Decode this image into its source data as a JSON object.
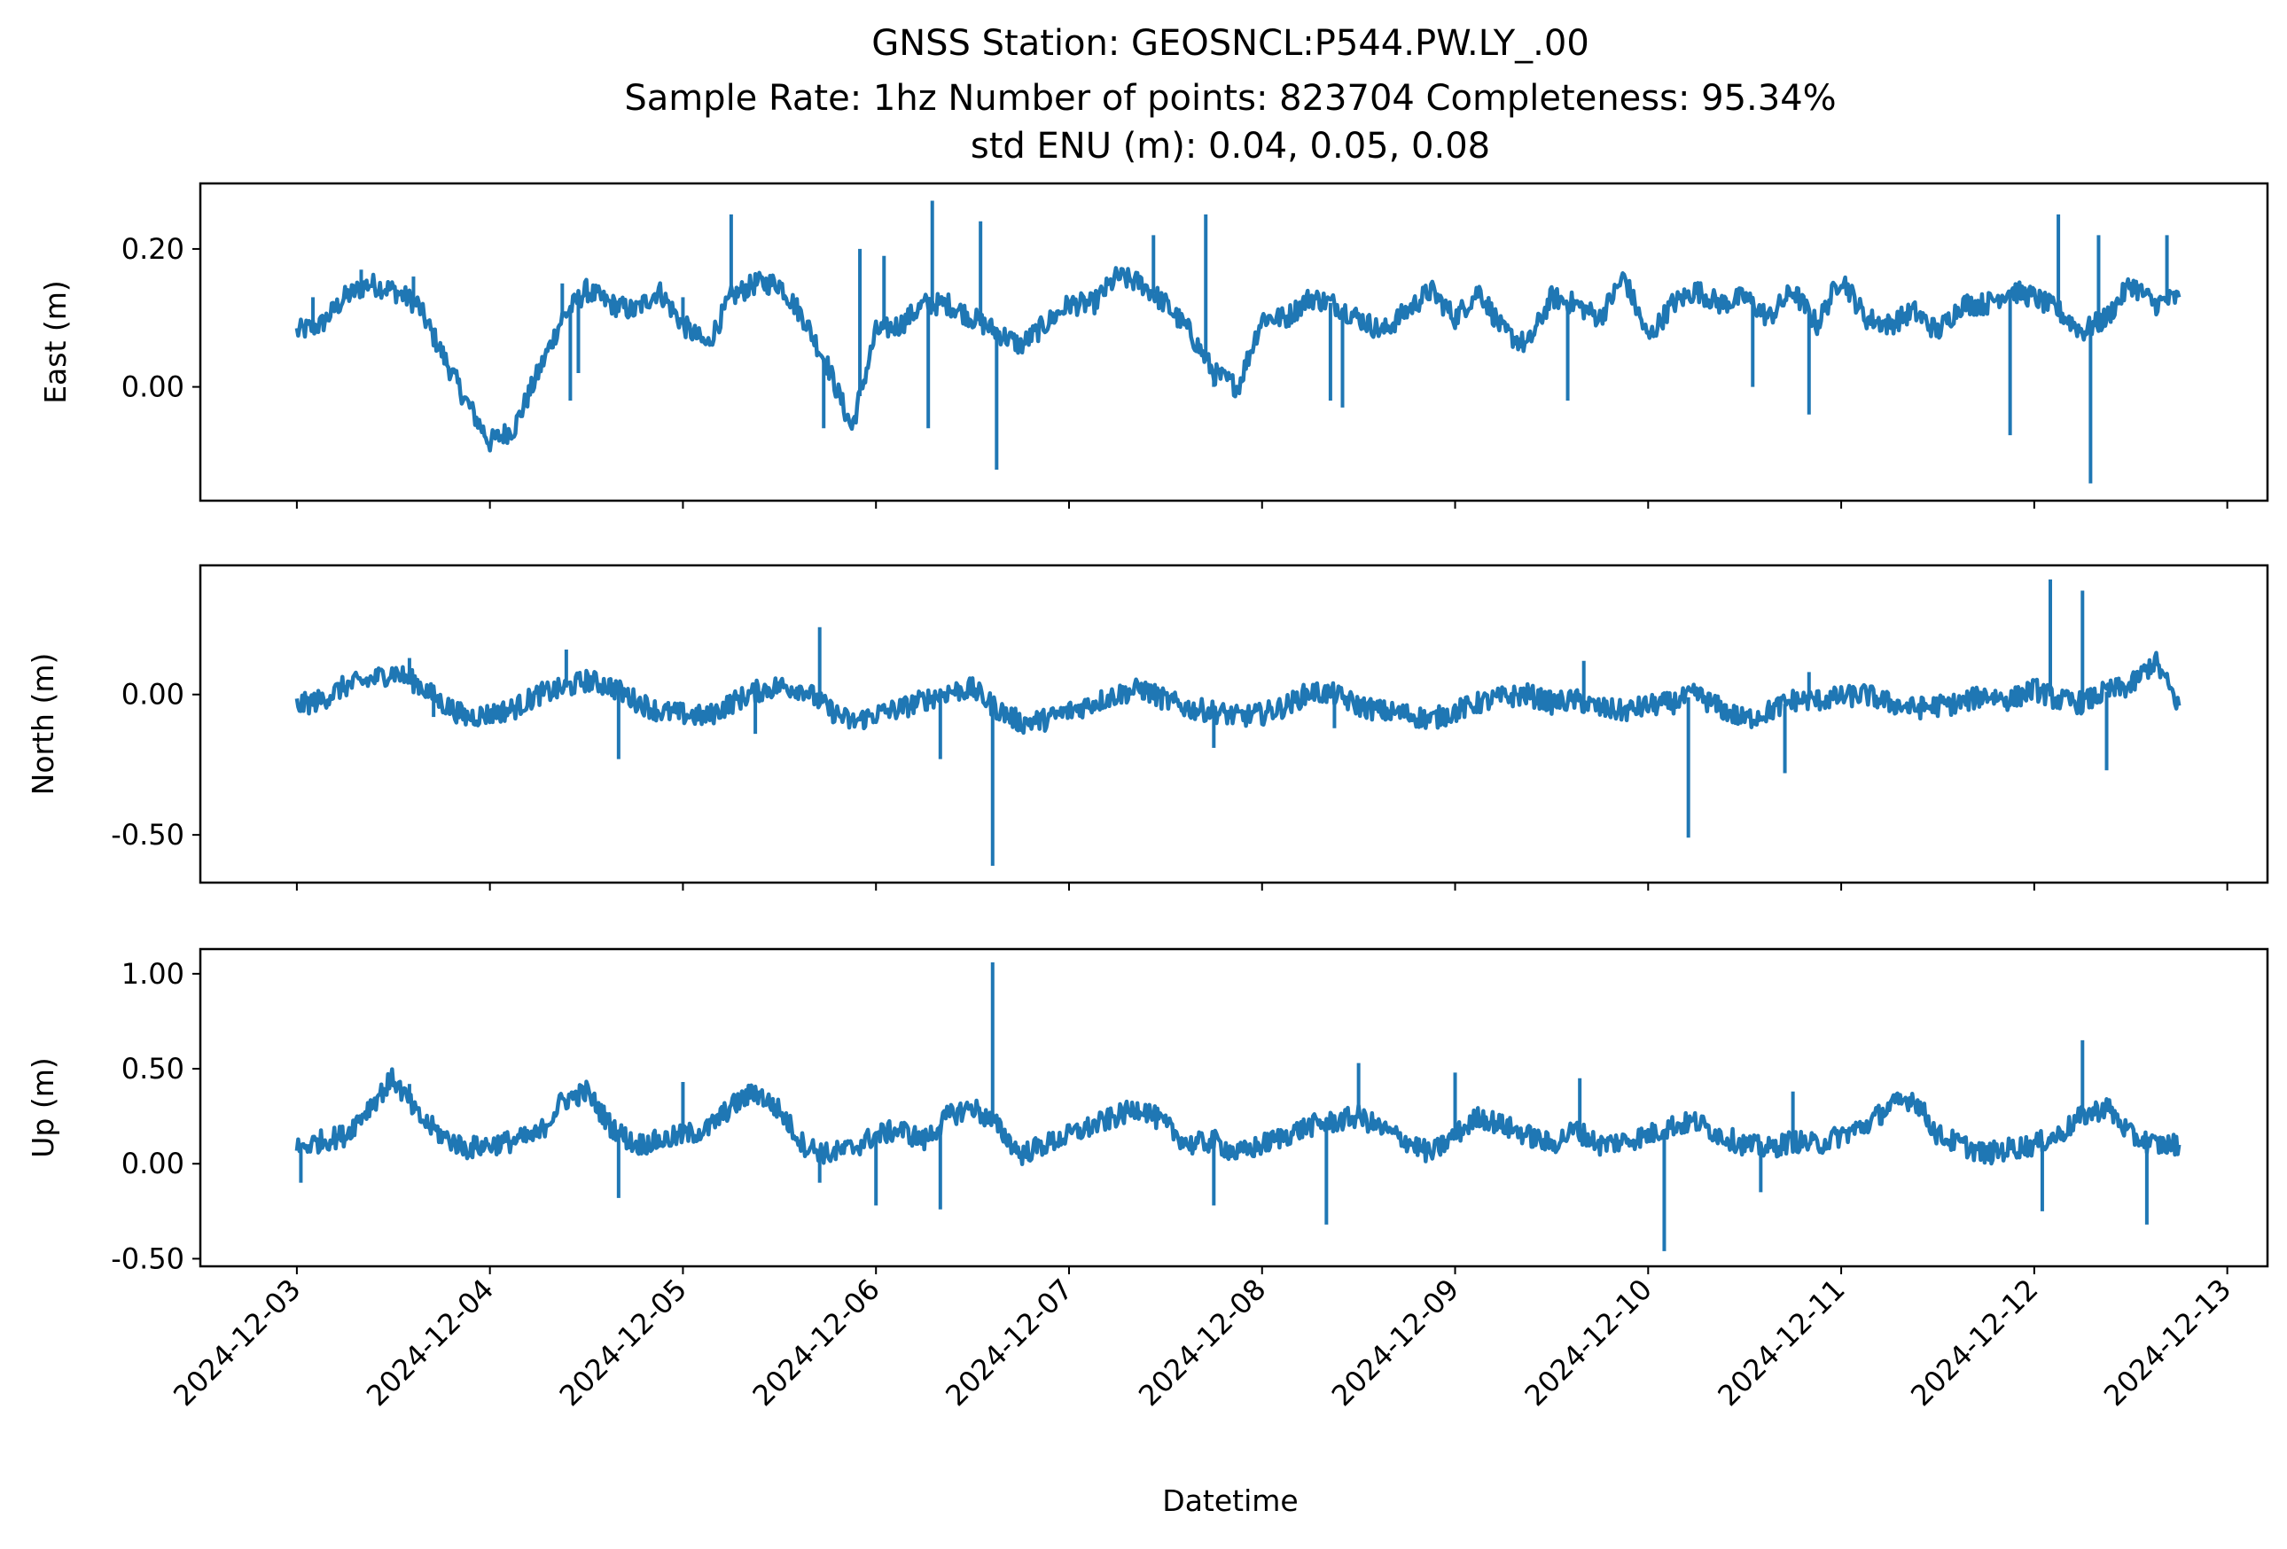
{
  "title_lines": [
    "GNSS Station: GEOSNCL:P544.PW.LY_.00",
    "Sample Rate: 1hz   Number of points: 823704    Completeness:  95.34%",
    "std ENU (m):  0.04, 0.05, 0.08"
  ],
  "xlabel": "Datetime",
  "x_tick_labels": [
    "2024-12-03",
    "2024-12-04",
    "2024-12-05",
    "2024-12-06",
    "2024-12-07",
    "2024-12-08",
    "2024-12-09",
    "2024-12-10",
    "2024-12-11",
    "2024-12-12",
    "2024-12-13"
  ],
  "line_color": "#1f77b4",
  "chart_data": [
    {
      "type": "line",
      "ylabel": "East (m)",
      "xlim": [
        "2024-12-02T12:00",
        "2024-12-13T05:00"
      ],
      "ylim": [
        -0.165,
        0.295
      ],
      "yticks": [
        0.0,
        0.2
      ],
      "ytick_labels": [
        "0.00",
        "0.20"
      ],
      "x": [
        "2024-12-03T00:00",
        "2024-12-03T03:00",
        "2024-12-03T06:00",
        "2024-12-03T09:00",
        "2024-12-03T12:00",
        "2024-12-03T15:00",
        "2024-12-03T18:00",
        "2024-12-03T21:00",
        "2024-12-04T00:00",
        "2024-12-04T03:00",
        "2024-12-04T06:00",
        "2024-12-04T09:00",
        "2024-12-04T12:00",
        "2024-12-04T15:00",
        "2024-12-04T18:00",
        "2024-12-04T21:00",
        "2024-12-05T00:00",
        "2024-12-05T03:00",
        "2024-12-05T06:00",
        "2024-12-05T09:00",
        "2024-12-05T12:00",
        "2024-12-05T15:00",
        "2024-12-05T18:00",
        "2024-12-05T21:00",
        "2024-12-06T00:00",
        "2024-12-06T03:00",
        "2024-12-06T06:00",
        "2024-12-06T09:00",
        "2024-12-06T12:00",
        "2024-12-06T15:00",
        "2024-12-06T18:00",
        "2024-12-06T21:00",
        "2024-12-07T00:00",
        "2024-12-07T03:00",
        "2024-12-07T06:00",
        "2024-12-07T09:00",
        "2024-12-07T12:00",
        "2024-12-07T15:00",
        "2024-12-07T18:00",
        "2024-12-07T21:00",
        "2024-12-08T00:00",
        "2024-12-08T03:00",
        "2024-12-08T06:00",
        "2024-12-08T09:00",
        "2024-12-08T12:00",
        "2024-12-08T15:00",
        "2024-12-08T18:00",
        "2024-12-08T21:00",
        "2024-12-09T00:00",
        "2024-12-09T03:00",
        "2024-12-09T06:00",
        "2024-12-09T09:00",
        "2024-12-09T12:00",
        "2024-12-09T15:00",
        "2024-12-09T18:00",
        "2024-12-09T21:00",
        "2024-12-10T00:00",
        "2024-12-10T03:00",
        "2024-12-10T06:00",
        "2024-12-10T09:00",
        "2024-12-10T12:00",
        "2024-12-10T15:00",
        "2024-12-10T18:00",
        "2024-12-10T21:00",
        "2024-12-11T00:00",
        "2024-12-11T03:00",
        "2024-12-11T06:00",
        "2024-12-11T09:00",
        "2024-12-11T12:00",
        "2024-12-11T15:00",
        "2024-12-11T18:00",
        "2024-12-11T21:00",
        "2024-12-12T00:00",
        "2024-12-12T03:00",
        "2024-12-12T06:00",
        "2024-12-12T09:00",
        "2024-12-12T12:00",
        "2024-12-12T15:00",
        "2024-12-12T18:00"
      ],
      "values": [
        0.08,
        0.09,
        0.13,
        0.15,
        0.14,
        0.12,
        0.05,
        -0.02,
        -0.08,
        -0.06,
        0.02,
        0.1,
        0.14,
        0.12,
        0.11,
        0.14,
        0.09,
        0.06,
        0.13,
        0.15,
        0.15,
        0.1,
        0.03,
        -0.06,
        0.08,
        0.09,
        0.12,
        0.12,
        0.1,
        0.08,
        0.06,
        0.09,
        0.12,
        0.12,
        0.16,
        0.15,
        0.12,
        0.08,
        0.02,
        0.0,
        0.1,
        0.1,
        0.13,
        0.12,
        0.1,
        0.08,
        0.11,
        0.14,
        0.1,
        0.14,
        0.08,
        0.06,
        0.13,
        0.12,
        0.1,
        0.16,
        0.07,
        0.12,
        0.14,
        0.12,
        0.13,
        0.1,
        0.14,
        0.09,
        0.16,
        0.1,
        0.09,
        0.11,
        0.08,
        0.12,
        0.12,
        0.14,
        0.13,
        0.11,
        0.08,
        0.1,
        0.15,
        0.12,
        0.13
      ],
      "spikes": [
        {
          "x": "2024-12-03T02:00",
          "y": 0.13
        },
        {
          "x": "2024-12-03T08:00",
          "y": 0.17
        },
        {
          "x": "2024-12-03T14:30",
          "y": 0.16
        },
        {
          "x": "2024-12-04T11:00",
          "y": 0.02
        },
        {
          "x": "2024-12-04T09:00",
          "y": 0.15
        },
        {
          "x": "2024-12-04T10:00",
          "y": -0.02
        },
        {
          "x": "2024-12-05T00:00",
          "y": 0.13
        },
        {
          "x": "2024-12-05T06:00",
          "y": 0.25
        },
        {
          "x": "2024-12-05T17:30",
          "y": -0.06
        },
        {
          "x": "2024-12-05T22:00",
          "y": 0.2
        },
        {
          "x": "2024-12-06T01:00",
          "y": 0.19
        },
        {
          "x": "2024-12-06T07:00",
          "y": 0.27
        },
        {
          "x": "2024-12-06T06:30",
          "y": -0.06
        },
        {
          "x": "2024-12-06T13:00",
          "y": 0.24
        },
        {
          "x": "2024-12-06T15:00",
          "y": -0.12
        },
        {
          "x": "2024-12-07T10:30",
          "y": 0.22
        },
        {
          "x": "2024-12-07T17:00",
          "y": 0.25
        },
        {
          "x": "2024-12-07T18:00",
          "y": 0.0
        },
        {
          "x": "2024-12-08T08:30",
          "y": -0.02
        },
        {
          "x": "2024-12-08T10:00",
          "y": -0.03
        },
        {
          "x": "2024-12-09T14:00",
          "y": -0.02
        },
        {
          "x": "2024-12-10T13:00",
          "y": 0.0
        },
        {
          "x": "2024-12-10T20:00",
          "y": -0.04
        },
        {
          "x": "2024-12-12T03:00",
          "y": 0.25
        },
        {
          "x": "2024-12-11T21:00",
          "y": -0.07
        },
        {
          "x": "2024-12-12T07:00",
          "y": -0.14
        },
        {
          "x": "2024-12-12T08:00",
          "y": 0.22
        },
        {
          "x": "2024-12-12T16:30",
          "y": 0.22
        }
      ]
    },
    {
      "type": "line",
      "ylabel": "North (m)",
      "xlim": [
        "2024-12-02T12:00",
        "2024-12-13T05:00"
      ],
      "ylim": [
        -0.67,
        0.46
      ],
      "yticks": [
        -0.5,
        0.0
      ],
      "ytick_labels": [
        "-0.50",
        "0.00"
      ],
      "x": [
        "2024-12-03T00:00",
        "2024-12-03T03:00",
        "2024-12-03T06:00",
        "2024-12-03T09:00",
        "2024-12-03T12:00",
        "2024-12-03T15:00",
        "2024-12-03T18:00",
        "2024-12-03T21:00",
        "2024-12-04T00:00",
        "2024-12-04T03:00",
        "2024-12-04T06:00",
        "2024-12-04T09:00",
        "2024-12-04T12:00",
        "2024-12-04T15:00",
        "2024-12-04T18:00",
        "2024-12-04T21:00",
        "2024-12-05T00:00",
        "2024-12-05T03:00",
        "2024-12-05T06:00",
        "2024-12-05T09:00",
        "2024-12-05T12:00",
        "2024-12-05T15:00",
        "2024-12-05T18:00",
        "2024-12-05T21:00",
        "2024-12-06T00:00",
        "2024-12-06T03:00",
        "2024-12-06T06:00",
        "2024-12-06T09:00",
        "2024-12-06T12:00",
        "2024-12-06T15:00",
        "2024-12-06T18:00",
        "2024-12-06T21:00",
        "2024-12-07T00:00",
        "2024-12-07T03:00",
        "2024-12-07T06:00",
        "2024-12-07T09:00",
        "2024-12-07T12:00",
        "2024-12-07T15:00",
        "2024-12-07T18:00",
        "2024-12-07T21:00",
        "2024-12-08T00:00",
        "2024-12-08T03:00",
        "2024-12-08T06:00",
        "2024-12-08T09:00",
        "2024-12-08T12:00",
        "2024-12-08T15:00",
        "2024-12-08T18:00",
        "2024-12-08T21:00",
        "2024-12-09T00:00",
        "2024-12-09T03:00",
        "2024-12-09T06:00",
        "2024-12-09T09:00",
        "2024-12-09T12:00",
        "2024-12-09T15:00",
        "2024-12-09T18:00",
        "2024-12-09T21:00",
        "2024-12-10T00:00",
        "2024-12-10T03:00",
        "2024-12-10T06:00",
        "2024-12-10T09:00",
        "2024-12-10T12:00",
        "2024-12-10T15:00",
        "2024-12-10T18:00",
        "2024-12-10T21:00",
        "2024-12-11T00:00",
        "2024-12-11T03:00",
        "2024-12-11T06:00",
        "2024-12-11T09:00",
        "2024-12-11T12:00",
        "2024-12-11T15:00",
        "2024-12-11T18:00",
        "2024-12-11T21:00",
        "2024-12-12T00:00",
        "2024-12-12T03:00",
        "2024-12-12T06:00",
        "2024-12-12T09:00",
        "2024-12-12T12:00",
        "2024-12-12T15:00",
        "2024-12-12T18:00"
      ],
      "values": [
        -0.04,
        -0.02,
        0.03,
        0.05,
        0.08,
        0.04,
        -0.03,
        -0.08,
        -0.07,
        -0.05,
        0.0,
        0.02,
        0.05,
        0.03,
        -0.02,
        -0.06,
        -0.07,
        -0.08,
        -0.03,
        0.01,
        0.03,
        0.02,
        -0.05,
        -0.1,
        -0.07,
        -0.05,
        -0.02,
        0.01,
        0.02,
        -0.05,
        -0.1,
        -0.09,
        -0.06,
        -0.03,
        0.0,
        0.02,
        -0.02,
        -0.05,
        -0.06,
        -0.08,
        -0.07,
        -0.04,
        0.01,
        0.0,
        -0.04,
        -0.06,
        -0.07,
        -0.09,
        -0.06,
        -0.03,
        -0.01,
        0.0,
        -0.03,
        -0.02,
        -0.05,
        -0.06,
        -0.04,
        -0.03,
        0.0,
        -0.05,
        -0.09,
        -0.06,
        -0.02,
        -0.02,
        -0.01,
        0.0,
        -0.03,
        -0.05,
        -0.04,
        -0.03,
        0.0,
        -0.02,
        0.02,
        -0.02,
        -0.03,
        0.01,
        0.03,
        0.12,
        -0.04
      ],
      "spikes": [
        {
          "x": "2024-12-03T06:30",
          "y": 0.05
        },
        {
          "x": "2024-12-03T14:00",
          "y": 0.13
        },
        {
          "x": "2024-12-03T17:00",
          "y": -0.08
        },
        {
          "x": "2024-12-04T09:30",
          "y": 0.16
        },
        {
          "x": "2024-12-04T16:00",
          "y": -0.23
        },
        {
          "x": "2024-12-05T09:00",
          "y": -0.14
        },
        {
          "x": "2024-12-05T17:00",
          "y": 0.24
        },
        {
          "x": "2024-12-06T08:00",
          "y": -0.23
        },
        {
          "x": "2024-12-06T14:30",
          "y": -0.61
        },
        {
          "x": "2024-12-07T18:00",
          "y": -0.19
        },
        {
          "x": "2024-12-08T09:00",
          "y": -0.12
        },
        {
          "x": "2024-12-09T16:00",
          "y": 0.12
        },
        {
          "x": "2024-12-10T05:00",
          "y": -0.51
        },
        {
          "x": "2024-12-10T17:00",
          "y": -0.28
        },
        {
          "x": "2024-12-10T20:00",
          "y": 0.08
        },
        {
          "x": "2024-12-12T02:00",
          "y": 0.41
        },
        {
          "x": "2024-12-12T06:00",
          "y": 0.37
        },
        {
          "x": "2024-12-12T09:00",
          "y": -0.27
        }
      ]
    },
    {
      "type": "line",
      "ylabel": "Up (m)",
      "xlim": [
        "2024-12-02T12:00",
        "2024-12-13T05:00"
      ],
      "ylim": [
        -0.54,
        1.13
      ],
      "yticks": [
        -0.5,
        0.0,
        0.5,
        1.0
      ],
      "ytick_labels": [
        "-0.50",
        "0.00",
        "0.50",
        "1.00"
      ],
      "x": [
        "2024-12-03T00:00",
        "2024-12-03T03:00",
        "2024-12-03T06:00",
        "2024-12-03T09:00",
        "2024-12-03T12:00",
        "2024-12-03T15:00",
        "2024-12-03T18:00",
        "2024-12-03T21:00",
        "2024-12-04T00:00",
        "2024-12-04T03:00",
        "2024-12-04T06:00",
        "2024-12-04T09:00",
        "2024-12-04T12:00",
        "2024-12-04T15:00",
        "2024-12-04T18:00",
        "2024-12-04T21:00",
        "2024-12-05T00:00",
        "2024-12-05T03:00",
        "2024-12-05T06:00",
        "2024-12-05T09:00",
        "2024-12-05T12:00",
        "2024-12-05T15:00",
        "2024-12-05T18:00",
        "2024-12-05T21:00",
        "2024-12-06T00:00",
        "2024-12-06T03:00",
        "2024-12-06T06:00",
        "2024-12-06T09:00",
        "2024-12-06T12:00",
        "2024-12-06T15:00",
        "2024-12-06T18:00",
        "2024-12-06T21:00",
        "2024-12-07T00:00",
        "2024-12-07T03:00",
        "2024-12-07T06:00",
        "2024-12-07T09:00",
        "2024-12-07T12:00",
        "2024-12-07T15:00",
        "2024-12-07T18:00",
        "2024-12-07T21:00",
        "2024-12-08T00:00",
        "2024-12-08T03:00",
        "2024-12-08T06:00",
        "2024-12-08T09:00",
        "2024-12-08T12:00",
        "2024-12-08T15:00",
        "2024-12-08T18:00",
        "2024-12-08T21:00",
        "2024-12-09T00:00",
        "2024-12-09T03:00",
        "2024-12-09T06:00",
        "2024-12-09T09:00",
        "2024-12-09T12:00",
        "2024-12-09T15:00",
        "2024-12-09T18:00",
        "2024-12-09T21:00",
        "2024-12-10T00:00",
        "2024-12-10T03:00",
        "2024-12-10T06:00",
        "2024-12-10T09:00",
        "2024-12-10T12:00",
        "2024-12-10T15:00",
        "2024-12-10T18:00",
        "2024-12-10T21:00",
        "2024-12-11T00:00",
        "2024-12-11T03:00",
        "2024-12-11T06:00",
        "2024-12-11T09:00",
        "2024-12-11T12:00",
        "2024-12-11T15:00",
        "2024-12-11T18:00",
        "2024-12-11T21:00",
        "2024-12-12T00:00",
        "2024-12-12T03:00",
        "2024-12-12T06:00",
        "2024-12-12T09:00",
        "2024-12-12T12:00",
        "2024-12-12T15:00",
        "2024-12-12T18:00"
      ],
      "values": [
        0.08,
        0.12,
        0.15,
        0.3,
        0.45,
        0.25,
        0.15,
        0.08,
        0.1,
        0.12,
        0.15,
        0.33,
        0.38,
        0.2,
        0.1,
        0.12,
        0.15,
        0.18,
        0.3,
        0.38,
        0.28,
        0.1,
        0.05,
        0.08,
        0.15,
        0.18,
        0.12,
        0.25,
        0.3,
        0.2,
        0.05,
        0.1,
        0.15,
        0.2,
        0.25,
        0.3,
        0.2,
        0.1,
        0.12,
        0.05,
        0.1,
        0.15,
        0.2,
        0.22,
        0.25,
        0.18,
        0.12,
        0.05,
        0.15,
        0.25,
        0.2,
        0.15,
        0.1,
        0.18,
        0.1,
        0.12,
        0.15,
        0.2,
        0.22,
        0.15,
        0.1,
        0.08,
        0.12,
        0.1,
        0.15,
        0.2,
        0.3,
        0.35,
        0.15,
        0.1,
        0.05,
        0.08,
        0.1,
        0.15,
        0.25,
        0.3,
        0.15,
        0.1,
        0.1
      ],
      "spikes": [
        {
          "x": "2024-12-03T00:30",
          "y": -0.1
        },
        {
          "x": "2024-12-03T14:00",
          "y": 0.42
        },
        {
          "x": "2024-12-04T16:00",
          "y": -0.18
        },
        {
          "x": "2024-12-05T00:00",
          "y": 0.43
        },
        {
          "x": "2024-12-05T17:00",
          "y": -0.1
        },
        {
          "x": "2024-12-06T00:00",
          "y": -0.22
        },
        {
          "x": "2024-12-06T08:00",
          "y": -0.24
        },
        {
          "x": "2024-12-06T14:30",
          "y": 1.06
        },
        {
          "x": "2024-12-07T18:00",
          "y": -0.22
        },
        {
          "x": "2024-12-08T08:00",
          "y": -0.32
        },
        {
          "x": "2024-12-08T12:00",
          "y": 0.53
        },
        {
          "x": "2024-12-09T00:00",
          "y": 0.48
        },
        {
          "x": "2024-12-09T15:30",
          "y": 0.45
        },
        {
          "x": "2024-12-10T02:00",
          "y": -0.46
        },
        {
          "x": "2024-12-10T14:00",
          "y": -0.15
        },
        {
          "x": "2024-12-10T18:00",
          "y": 0.38
        },
        {
          "x": "2024-12-12T01:00",
          "y": -0.25
        },
        {
          "x": "2024-12-12T06:00",
          "y": 0.65
        },
        {
          "x": "2024-12-12T14:00",
          "y": -0.32
        }
      ]
    }
  ]
}
